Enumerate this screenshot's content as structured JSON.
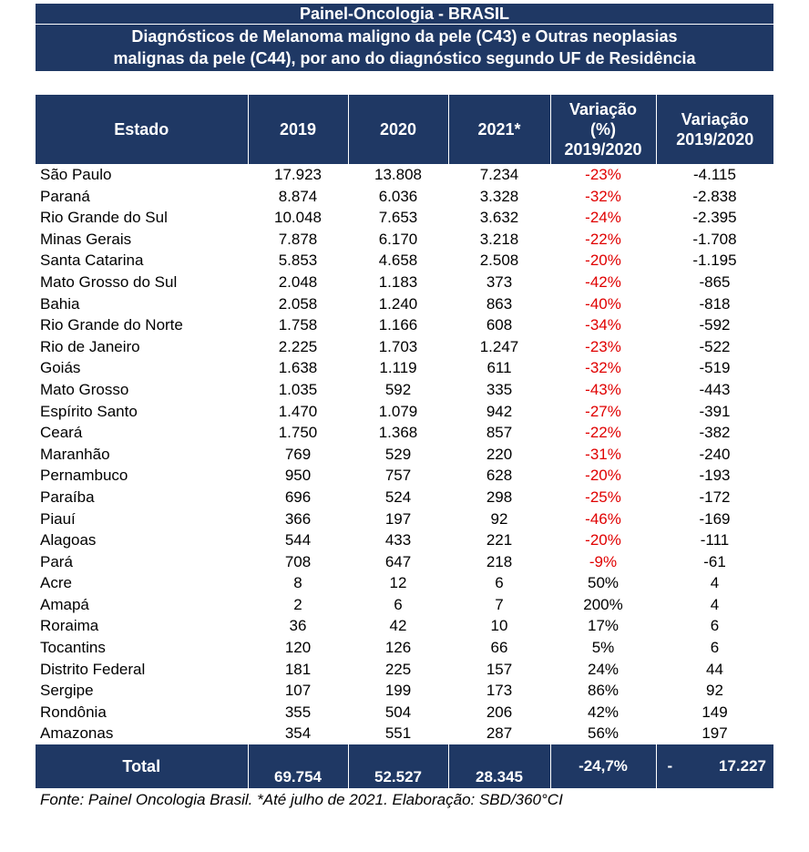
{
  "title": "Painel-Oncologia - BRASIL",
  "subtitle_line1": "Diagnósticos de Melanoma maligno da pele (C43) e Outras neoplasias",
  "subtitle_line2": "malignas da pele (C44), por ano do diagnóstico segundo UF de Residência",
  "headers": {
    "estado": "Estado",
    "y2019": "2019",
    "y2020": "2020",
    "y2021": "2021*",
    "var_pct_1": "Variação",
    "var_pct_2": "(%)",
    "var_pct_3": "2019/2020",
    "var_abs_1": "Variação",
    "var_abs_2": "2019/2020"
  },
  "rows": [
    {
      "estado": "São Paulo",
      "y2019": "17.923",
      "y2020": "13.808",
      "y2021": "7.234",
      "var_pct": "-23%",
      "var_abs": "-4.115"
    },
    {
      "estado": "Paraná",
      "y2019": "8.874",
      "y2020": "6.036",
      "y2021": "3.328",
      "var_pct": "-32%",
      "var_abs": "-2.838"
    },
    {
      "estado": "Rio Grande do Sul",
      "y2019": "10.048",
      "y2020": "7.653",
      "y2021": "3.632",
      "var_pct": "-24%",
      "var_abs": "-2.395"
    },
    {
      "estado": "Minas Gerais",
      "y2019": "7.878",
      "y2020": "6.170",
      "y2021": "3.218",
      "var_pct": "-22%",
      "var_abs": "-1.708"
    },
    {
      "estado": "Santa Catarina",
      "y2019": "5.853",
      "y2020": "4.658",
      "y2021": "2.508",
      "var_pct": "-20%",
      "var_abs": "-1.195"
    },
    {
      "estado": "Mato Grosso do Sul",
      "y2019": "2.048",
      "y2020": "1.183",
      "y2021": "373",
      "var_pct": "-42%",
      "var_abs": "-865"
    },
    {
      "estado": "Bahia",
      "y2019": "2.058",
      "y2020": "1.240",
      "y2021": "863",
      "var_pct": "-40%",
      "var_abs": "-818"
    },
    {
      "estado": "Rio Grande do Norte",
      "y2019": "1.758",
      "y2020": "1.166",
      "y2021": "608",
      "var_pct": "-34%",
      "var_abs": "-592"
    },
    {
      "estado": "Rio de Janeiro",
      "y2019": "2.225",
      "y2020": "1.703",
      "y2021": "1.247",
      "var_pct": "-23%",
      "var_abs": "-522"
    },
    {
      "estado": "Goiás",
      "y2019": "1.638",
      "y2020": "1.119",
      "y2021": "611",
      "var_pct": "-32%",
      "var_abs": "-519"
    },
    {
      "estado": "Mato Grosso",
      "y2019": "1.035",
      "y2020": "592",
      "y2021": "335",
      "var_pct": "-43%",
      "var_abs": "-443"
    },
    {
      "estado": "Espírito Santo",
      "y2019": "1.470",
      "y2020": "1.079",
      "y2021": "942",
      "var_pct": "-27%",
      "var_abs": "-391"
    },
    {
      "estado": "Ceará",
      "y2019": "1.750",
      "y2020": "1.368",
      "y2021": "857",
      "var_pct": "-22%",
      "var_abs": "-382"
    },
    {
      "estado": "Maranhão",
      "y2019": "769",
      "y2020": "529",
      "y2021": "220",
      "var_pct": "-31%",
      "var_abs": "-240"
    },
    {
      "estado": "Pernambuco",
      "y2019": "950",
      "y2020": "757",
      "y2021": "628",
      "var_pct": "-20%",
      "var_abs": "-193"
    },
    {
      "estado": "Paraíba",
      "y2019": "696",
      "y2020": "524",
      "y2021": "298",
      "var_pct": "-25%",
      "var_abs": "-172"
    },
    {
      "estado": "Piauí",
      "y2019": "366",
      "y2020": "197",
      "y2021": "92",
      "var_pct": "-46%",
      "var_abs": "-169"
    },
    {
      "estado": "Alagoas",
      "y2019": "544",
      "y2020": "433",
      "y2021": "221",
      "var_pct": "-20%",
      "var_abs": "-111"
    },
    {
      "estado": "Pará",
      "y2019": "708",
      "y2020": "647",
      "y2021": "218",
      "var_pct": "-9%",
      "var_abs": "-61"
    },
    {
      "estado": "Acre",
      "y2019": "8",
      "y2020": "12",
      "y2021": "6",
      "var_pct": "50%",
      "var_abs": "4"
    },
    {
      "estado": "Amapá",
      "y2019": "2",
      "y2020": "6",
      "y2021": "7",
      "var_pct": "200%",
      "var_abs": "4"
    },
    {
      "estado": "Roraima",
      "y2019": "36",
      "y2020": "42",
      "y2021": "10",
      "var_pct": "17%",
      "var_abs": "6"
    },
    {
      "estado": "Tocantins",
      "y2019": "120",
      "y2020": "126",
      "y2021": "66",
      "var_pct": "5%",
      "var_abs": "6"
    },
    {
      "estado": "Distrito Federal",
      "y2019": "181",
      "y2020": "225",
      "y2021": "157",
      "var_pct": "24%",
      "var_abs": "44"
    },
    {
      "estado": "Sergipe",
      "y2019": "107",
      "y2020": "199",
      "y2021": "173",
      "var_pct": "86%",
      "var_abs": "92"
    },
    {
      "estado": "Rondônia",
      "y2019": "355",
      "y2020": "504",
      "y2021": "206",
      "var_pct": "42%",
      "var_abs": "149"
    },
    {
      "estado": "Amazonas",
      "y2019": "354",
      "y2020": "551",
      "y2021": "287",
      "var_pct": "56%",
      "var_abs": "197"
    }
  ],
  "total": {
    "label": "Total",
    "y2019": "69.754",
    "y2020": "52.527",
    "y2021": "28.345",
    "var_pct": "-24,7%",
    "var_abs_sign": "-",
    "var_abs": "17.227"
  },
  "footnote": "Fonte: Painel Oncologia Brasil. *Até julho de 2021. Elaboração: SBD/360°CI",
  "colors": {
    "header_bg": "#1f3864",
    "negative_text": "#e00000"
  }
}
